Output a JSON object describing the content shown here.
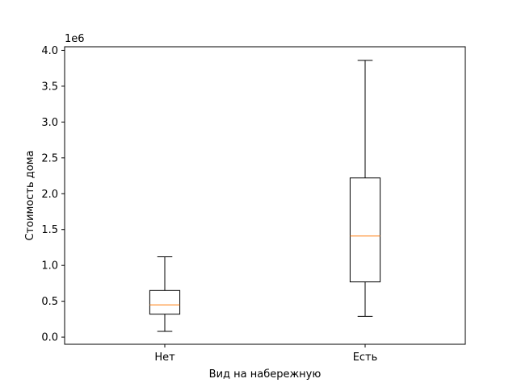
{
  "chart_data": {
    "type": "box",
    "title": "",
    "xlabel": "Вид на набережную",
    "ylabel": "Стоимость дома",
    "y_offset_label": "1e6",
    "ylim": [
      -0.1,
      4.05
    ],
    "y_ticks": [
      0.0,
      0.5,
      1.0,
      1.5,
      2.0,
      2.5,
      3.0,
      3.5,
      4.0
    ],
    "y_tick_labels": [
      "0.0",
      "0.5",
      "1.0",
      "1.5",
      "2.0",
      "2.5",
      "3.0",
      "3.5",
      "4.0"
    ],
    "categories": [
      "Нет",
      "Есть"
    ],
    "grid": false,
    "boxes": [
      {
        "category": "Нет",
        "whisker_low": 0.08,
        "q1": 0.32,
        "median": 0.45,
        "q3": 0.65,
        "whisker_high": 1.12
      },
      {
        "category": "Есть",
        "whisker_low": 0.29,
        "q1": 0.77,
        "median": 1.41,
        "q3": 2.22,
        "whisker_high": 3.86
      }
    ],
    "colors": {
      "box": "#000000",
      "median": "#ff7f0e"
    }
  }
}
